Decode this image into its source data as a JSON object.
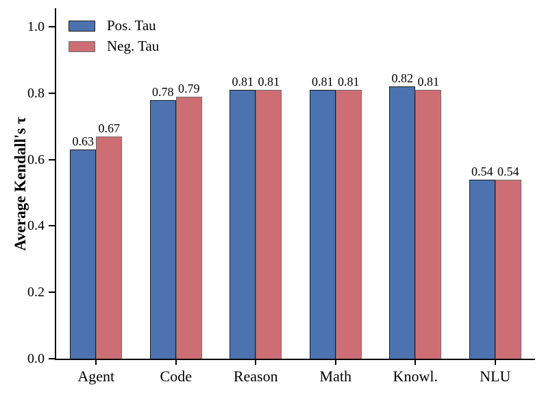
{
  "chart_data": {
    "type": "bar",
    "title": "",
    "xlabel": "",
    "ylabel": "Average Kendall's τ",
    "categories": [
      "Agent",
      "Code",
      "Reason",
      "Math",
      "Knowl.",
      "NLU"
    ],
    "series": [
      {
        "name": "Pos. Tau",
        "color": "#4C72B0",
        "edge_color": "#1c1c1c",
        "values": [
          0.63,
          0.78,
          0.81,
          0.81,
          0.82,
          0.54
        ],
        "labels": [
          "0.63",
          "0.78",
          "0.81",
          "0.81",
          "0.82",
          "0.54"
        ]
      },
      {
        "name": "Neg. Tau",
        "color": "#CD6E74",
        "edge_color": "#6e6e6e",
        "values": [
          0.67,
          0.79,
          0.81,
          0.81,
          0.81,
          0.54
        ],
        "labels": [
          "0.67",
          "0.79",
          "0.81",
          "0.81",
          "0.81",
          "0.54"
        ]
      }
    ],
    "yticks": [
      "0.0",
      "0.2",
      "0.4",
      "0.6",
      "0.8",
      "1.0"
    ],
    "ytick_values": [
      0.0,
      0.2,
      0.4,
      0.6,
      0.8,
      1.0
    ],
    "ylim": [
      0,
      1.056
    ],
    "grid": false,
    "legend_position": "upper left",
    "background_color": "#ffffff",
    "axis_color": "#000000"
  }
}
